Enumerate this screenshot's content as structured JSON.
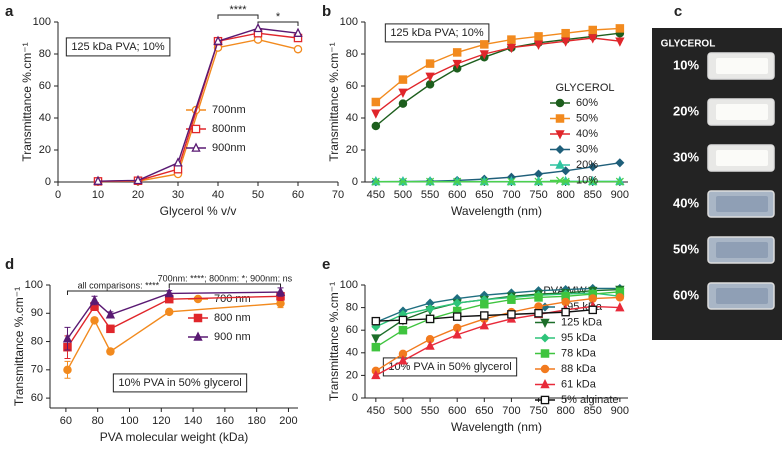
{
  "chart_data": [
    {
      "panel": "a",
      "type": "line",
      "xlabel": "Glycerol % v/v",
      "ylabel": "Transmittance %.cm⁻¹",
      "x": [
        10,
        20,
        30,
        40,
        50,
        60
      ],
      "xlim": [
        0,
        70
      ],
      "xticks": [
        0,
        10,
        20,
        30,
        40,
        50,
        60,
        70
      ],
      "ylim": [
        0,
        100
      ],
      "yticks": [
        0,
        20,
        40,
        60,
        80,
        100
      ],
      "annotation": "125 kDa PVA; 10%",
      "significance": [
        {
          "from": 40,
          "to": 50,
          "label": "****"
        },
        {
          "from": 50,
          "to": 60,
          "label": "*"
        }
      ],
      "series": [
        {
          "name": "700nm",
          "color": "#f28a1e",
          "marker": "circle",
          "filled": false,
          "values": [
            0.3,
            0.5,
            5,
            84,
            89,
            83
          ]
        },
        {
          "name": "800nm",
          "color": "#e0262b",
          "marker": "square",
          "filled": false,
          "values": [
            0.4,
            0.8,
            8,
            88,
            93,
            90
          ]
        },
        {
          "name": "900nm",
          "color": "#5a1a73",
          "marker": "triangle",
          "filled": false,
          "values": [
            0.5,
            1,
            12,
            88,
            96,
            93
          ]
        }
      ]
    },
    {
      "panel": "b",
      "type": "line",
      "xlabel": "Wavelength (nm)",
      "ylabel": "Transmittance %.cm⁻¹",
      "x": [
        450,
        500,
        550,
        600,
        650,
        700,
        750,
        800,
        850,
        900
      ],
      "xlim": [
        430,
        915
      ],
      "xticks": [
        450,
        500,
        550,
        600,
        650,
        700,
        750,
        800,
        850,
        900
      ],
      "ylim": [
        0,
        100
      ],
      "yticks": [
        0,
        20,
        40,
        60,
        80,
        100
      ],
      "annotation": "125 kDa PVA; 10%",
      "legend_title": "GLYCEROL",
      "series": [
        {
          "name": "60%",
          "color": "#1d5e1d",
          "marker": "circle",
          "filled": true,
          "values": [
            35,
            49,
            61,
            71,
            78,
            84,
            87,
            89,
            91,
            93
          ]
        },
        {
          "name": "50%",
          "color": "#f28a1e",
          "marker": "square",
          "filled": true,
          "values": [
            50,
            64,
            74,
            81,
            86,
            89,
            91,
            93,
            95,
            96
          ]
        },
        {
          "name": "40%",
          "color": "#e0262b",
          "marker": "triangledown",
          "filled": true,
          "values": [
            43,
            56,
            66,
            74,
            80,
            84,
            86,
            88,
            90,
            88
          ]
        },
        {
          "name": "30%",
          "color": "#1f5f7a",
          "marker": "diamond",
          "filled": true,
          "values": [
            0.2,
            0.3,
            0.5,
            1,
            1.8,
            3,
            5,
            7,
            9.5,
            12
          ]
        },
        {
          "name": "20%",
          "color": "#2ec4a0",
          "marker": "triangle",
          "filled": true,
          "values": [
            0.3,
            0.3,
            0.3,
            0.3,
            0.3,
            0.3,
            0.3,
            0.4,
            0.4,
            0.4
          ]
        },
        {
          "name": "10%",
          "color": "#4cd14c",
          "marker": "x",
          "filled": true,
          "values": [
            0.2,
            0.2,
            0.2,
            0.2,
            0.2,
            0.2,
            0.2,
            0.2,
            0.2,
            0.2
          ]
        }
      ]
    },
    {
      "panel": "d",
      "type": "line",
      "xlabel": "PVA molecular weight (kDa)",
      "ylabel": "Transmittance %.cm⁻¹",
      "x": [
        61,
        78,
        88,
        125,
        195
      ],
      "xlim": [
        50,
        206
      ],
      "xticks": [
        60,
        80,
        100,
        120,
        140,
        160,
        180,
        200
      ],
      "ylim": [
        56.5,
        100
      ],
      "yticks": [
        60,
        70,
        80,
        90,
        100
      ],
      "annotation": "10% PVA in 50% glycerol",
      "significance": [
        {
          "from": 61,
          "to": 125,
          "label": "all comparisons: ****"
        },
        {
          "from": 125,
          "to": 195,
          "label": "700nm: ****; 800nm: *; 900nm: ns"
        }
      ],
      "series": [
        {
          "name": "700 nm",
          "color": "#f28a1e",
          "marker": "circle",
          "filled": true,
          "values": [
            70,
            87.5,
            76.5,
            90.5,
            93.5
          ],
          "errors": [
            3,
            1,
            1,
            0.5,
            1.5
          ]
        },
        {
          "name": "800 nm",
          "color": "#e0262b",
          "marker": "square",
          "filled": true,
          "values": [
            78,
            92.5,
            84.5,
            95,
            96
          ],
          "errors": [
            4,
            1.5,
            1,
            1,
            1.5
          ]
        },
        {
          "name": "900 nm",
          "color": "#5a1a73",
          "marker": "triangle",
          "filled": true,
          "values": [
            81,
            94.5,
            89.5,
            97,
            97.5
          ],
          "errors": [
            4,
            1.5,
            1,
            1,
            1.5
          ]
        }
      ]
    },
    {
      "panel": "e",
      "type": "line",
      "xlabel": "Wavelength (nm)",
      "ylabel": "Transmittance %.cm⁻¹",
      "x": [
        450,
        500,
        550,
        600,
        650,
        700,
        750,
        800,
        850,
        900
      ],
      "xlim": [
        430,
        915
      ],
      "xticks": [
        450,
        500,
        550,
        600,
        650,
        700,
        750,
        800,
        850,
        900
      ],
      "ylim": [
        0,
        100
      ],
      "yticks": [
        0,
        20,
        40,
        60,
        80,
        100
      ],
      "annotation": "10% PVA in 50% glycerol",
      "legend_title": "PVA MW",
      "series": [
        {
          "name": "195 kDa",
          "color": "#1f6f80",
          "marker": "diamond",
          "filled": true,
          "values": [
            67,
            77,
            84,
            88,
            91,
            93,
            95,
            96,
            97,
            97
          ]
        },
        {
          "name": "125 kDa",
          "color": "#1d6e2a",
          "marker": "triangledown",
          "filled": true,
          "values": [
            53,
            69,
            78,
            84,
            87,
            90,
            92,
            93,
            95,
            96
          ]
        },
        {
          "name": "95 kDa",
          "color": "#2ec47a",
          "marker": "diamond",
          "filled": true,
          "values": [
            63,
            74,
            79,
            84,
            87,
            89,
            91,
            92,
            93,
            90
          ]
        },
        {
          "name": "78 kDa",
          "color": "#3fc43f",
          "marker": "square",
          "filled": true,
          "values": [
            45,
            60,
            70,
            77,
            83,
            87,
            89,
            90,
            92,
            94
          ]
        },
        {
          "name": "88 kDa",
          "color": "#f27a1e",
          "marker": "circle",
          "filled": true,
          "values": [
            24,
            39,
            52,
            62,
            70,
            76,
            81,
            85,
            88,
            89
          ]
        },
        {
          "name": "61 kDa",
          "color": "#e82a3a",
          "marker": "triangle",
          "filled": true,
          "values": [
            20,
            33,
            46,
            56,
            64,
            70,
            74,
            78,
            81,
            80
          ]
        },
        {
          "name": "5% alginate",
          "color": "#111111",
          "marker": "square",
          "filled": false,
          "values": [
            68,
            69,
            70,
            72,
            73,
            74,
            75,
            76,
            78,
            null
          ]
        }
      ]
    }
  ],
  "photo": {
    "panel": "c",
    "title": "GLYCEROL",
    "labels": [
      "10%",
      "20%",
      "30%",
      "40%",
      "50%",
      "60%"
    ]
  }
}
